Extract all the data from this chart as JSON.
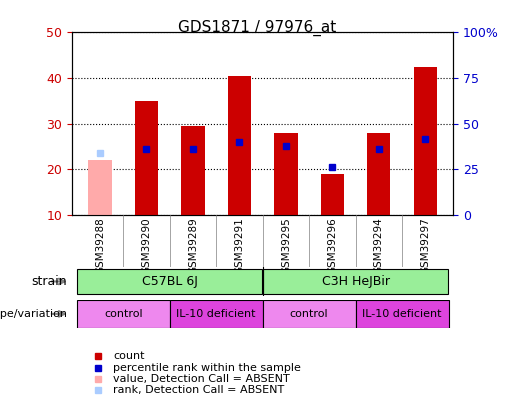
{
  "title": "GDS1871 / 97976_at",
  "samples": [
    "GSM39288",
    "GSM39290",
    "GSM39289",
    "GSM39291",
    "GSM39295",
    "GSM39296",
    "GSM39294",
    "GSM39297"
  ],
  "count_values": [
    22,
    35,
    29.5,
    40.5,
    28,
    19,
    28,
    42.5
  ],
  "rank_values": [
    23.5,
    24.5,
    24.5,
    26,
    25,
    20.5,
    24.5,
    26.5
  ],
  "absent_value": 0,
  "absent_rank": 0,
  "absent_flags": [
    true,
    false,
    false,
    false,
    false,
    false,
    false,
    false
  ],
  "bar_bottom": 10,
  "ylim_left": [
    10,
    50
  ],
  "ylim_right": [
    0,
    100
  ],
  "yticks_left": [
    10,
    20,
    30,
    40,
    50
  ],
  "yticks_right": [
    0,
    25,
    50,
    75,
    100
  ],
  "yticklabels_right": [
    "0",
    "25",
    "50",
    "75",
    "100%"
  ],
  "count_color": "#cc0000",
  "rank_color": "#0000cc",
  "absent_count_color": "#ffaaaa",
  "absent_rank_color": "#aaccff",
  "strain_labels": [
    [
      "C57BL 6J",
      0,
      4
    ],
    [
      "C3H HeJBir",
      4,
      8
    ]
  ],
  "strain_color": "#99ee99",
  "genotype_groups": [
    {
      "label": "control",
      "start": 0,
      "end": 2,
      "color": "#ee88ee"
    },
    {
      "label": "IL-10 deficient",
      "start": 2,
      "end": 4,
      "color": "#dd44dd"
    },
    {
      "label": "control",
      "start": 4,
      "end": 6,
      "color": "#ee88ee"
    },
    {
      "label": "IL-10 deficient",
      "start": 6,
      "end": 8,
      "color": "#dd44dd"
    }
  ],
  "grid_color": "#000000",
  "bg_color": "#ffffff",
  "plot_bg": "#ffffff",
  "spine_color": "#000000",
  "tick_label_color_left": "#cc0000",
  "tick_label_color_right": "#0000cc"
}
